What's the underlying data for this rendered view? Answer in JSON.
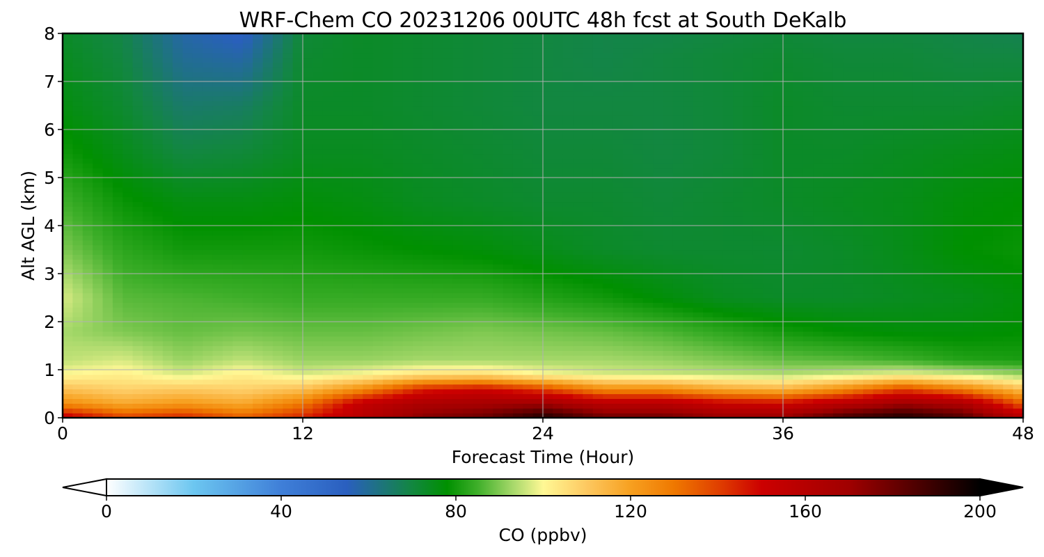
{
  "chart_data": {
    "type": "heatmap",
    "title": "WRF-Chem CO  20231206 00UTC 48h fcst at South DeKalb",
    "xlabel": "Forecast Time (Hour)",
    "ylabel": "Alt AGL (km)",
    "xlim": [
      0,
      48
    ],
    "ylim": [
      0,
      8
    ],
    "xticks": [
      0,
      12,
      24,
      36,
      48
    ],
    "yticks": [
      0,
      1,
      2,
      3,
      4,
      5,
      6,
      7,
      8
    ],
    "grid": true,
    "colorbar": {
      "label": "CO  (ppbv)",
      "range": [
        0,
        200
      ],
      "ticks": [
        0,
        40,
        80,
        120,
        160,
        200
      ],
      "extend": "both",
      "stops": [
        {
          "v": 0,
          "c": "#ffffff"
        },
        {
          "v": 20,
          "c": "#6cc6f0"
        },
        {
          "v": 40,
          "c": "#3f7fd8"
        },
        {
          "v": 55,
          "c": "#2a5fbf"
        },
        {
          "v": 70,
          "c": "#128740"
        },
        {
          "v": 78,
          "c": "#009000"
        },
        {
          "v": 85,
          "c": "#3faf2a"
        },
        {
          "v": 93,
          "c": "#a6d86a"
        },
        {
          "v": 100,
          "c": "#fff895"
        },
        {
          "v": 110,
          "c": "#fdc860"
        },
        {
          "v": 120,
          "c": "#f7a020"
        },
        {
          "v": 130,
          "c": "#ef7800"
        },
        {
          "v": 140,
          "c": "#e04000"
        },
        {
          "v": 150,
          "c": "#cc0000"
        },
        {
          "v": 170,
          "c": "#a00000"
        },
        {
          "v": 185,
          "c": "#500000"
        },
        {
          "v": 200,
          "c": "#000000"
        }
      ]
    },
    "z_unit": "ppbv",
    "time_hours": [
      0,
      3,
      6,
      9,
      12,
      15,
      18,
      21,
      24,
      27,
      30,
      33,
      36,
      39,
      42,
      45,
      48
    ],
    "altitudes_km": [
      0,
      0.3,
      0.6,
      0.9,
      1.2,
      1.8,
      2.5,
      3.5,
      4.5,
      5.5,
      6.5,
      7.5,
      8
    ],
    "values": [
      [
        155,
        140,
        145,
        135,
        145,
        160,
        175,
        180,
        195,
        180,
        180,
        172,
        172,
        188,
        195,
        185,
        160
      ],
      [
        125,
        118,
        122,
        118,
        130,
        155,
        165,
        168,
        170,
        160,
        160,
        152,
        150,
        160,
        170,
        165,
        135
      ],
      [
        112,
        108,
        110,
        108,
        112,
        125,
        145,
        150,
        140,
        125,
        125,
        118,
        115,
        125,
        140,
        128,
        112
      ],
      [
        100,
        102,
        97,
        102,
        97,
        100,
        105,
        106,
        100,
        97,
        96,
        95,
        94,
        96,
        99,
        96,
        92
      ],
      [
        95,
        97,
        92,
        95,
        92,
        92,
        93,
        93,
        93,
        93,
        92,
        90,
        88,
        87,
        85,
        82,
        81
      ],
      [
        93,
        90,
        88,
        89,
        88,
        88,
        89,
        90,
        89,
        88,
        86,
        83,
        80,
        78,
        77,
        77,
        78
      ],
      [
        97,
        87,
        86,
        85,
        84,
        84,
        84,
        84,
        82,
        80,
        77,
        74,
        73,
        73,
        74,
        75,
        77
      ],
      [
        90,
        83,
        80,
        80,
        80,
        79,
        78,
        77,
        75,
        73,
        72,
        72,
        72,
        73,
        75,
        78,
        79
      ],
      [
        85,
        79,
        76,
        76,
        77,
        76,
        74,
        73,
        72,
        72,
        71,
        72,
        73,
        74,
        75,
        77,
        78
      ],
      [
        80,
        75,
        70,
        71,
        74,
        74,
        73,
        72,
        71,
        71,
        70,
        71,
        73,
        73,
        74,
        75,
        76
      ],
      [
        76,
        72,
        65,
        66,
        73,
        73,
        72,
        71,
        70,
        70,
        70,
        71,
        73,
        72,
        72,
        72,
        73
      ],
      [
        74,
        70,
        60,
        58,
        72,
        73,
        72,
        71,
        70,
        69,
        70,
        71,
        72,
        71,
        71,
        70,
        70
      ],
      [
        73,
        69,
        58,
        54,
        71,
        73,
        72,
        71,
        70,
        69,
        69,
        70,
        71,
        70,
        70,
        69,
        68
      ]
    ]
  }
}
